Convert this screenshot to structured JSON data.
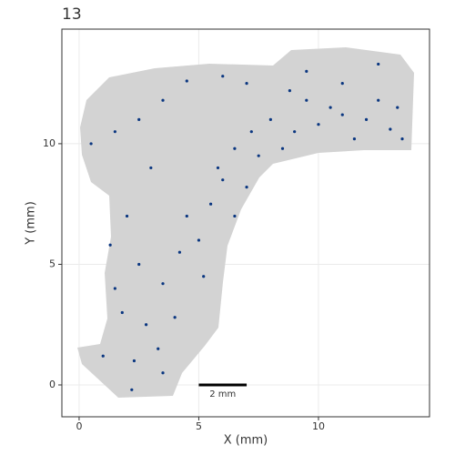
{
  "chart_data": {
    "type": "scatter",
    "title": "13",
    "x_label": "X (mm)",
    "y_label": "Y (mm)",
    "xlim": [
      -0.72,
      14.64
    ],
    "ylim": [
      -1.32,
      14.75
    ],
    "xticks": [
      0,
      5,
      10
    ],
    "yticks": [
      0,
      5,
      10
    ],
    "grid": true,
    "series": [
      {
        "color": "#0a3680",
        "x": [
          8,
          9,
          10,
          11,
          12,
          13,
          13.5,
          12.5,
          11.5,
          10.5,
          9.5,
          8.5,
          7.5,
          6.5,
          6,
          7,
          5.5,
          4.5,
          5,
          4.2,
          6.5,
          5.8,
          7.2,
          8.8,
          7,
          6,
          4.5,
          3.5,
          2.5,
          1.5,
          0.5,
          3,
          2,
          2.5,
          3.5,
          1.5,
          1.8,
          2.8,
          3.3,
          2.3,
          1,
          3.5,
          2.2,
          4,
          5.2,
          1.3,
          11,
          12.5,
          9.5,
          13.3
        ],
        "values": [
          11,
          10.5,
          10.8,
          11.2,
          11,
          10.6,
          10.2,
          11.8,
          10.2,
          11.5,
          11.8,
          9.8,
          9.5,
          9.8,
          8.5,
          8.2,
          7.5,
          7,
          6,
          5.5,
          7,
          9,
          10.5,
          12.2,
          12.5,
          12.8,
          12.6,
          11.8,
          11,
          10.5,
          10,
          9,
          7,
          5,
          4.2,
          4,
          3,
          2.5,
          1.5,
          1,
          1.2,
          0.5,
          -0.2,
          2.8,
          4.5,
          5.8,
          12.5,
          13.3,
          13,
          11.5
        ]
      }
    ],
    "scalebar": {
      "x": [
        5,
        7
      ],
      "y": 0,
      "label": "2 mm"
    }
  }
}
